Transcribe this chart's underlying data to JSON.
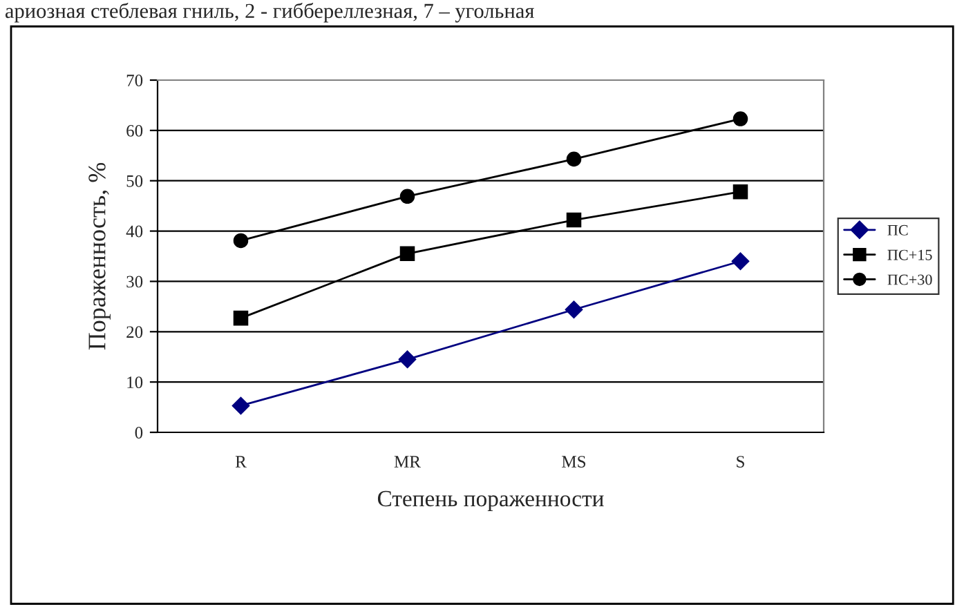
{
  "chart_data": {
    "type": "line",
    "annotations": [
      "ариозная стеблевая гниль, 2 - гиббереллезная, 7 – угольная"
    ],
    "xlabel": "Степень пораженности",
    "ylabel": "Пораженность, %",
    "categories": [
      "R",
      "MR",
      "MS",
      "S"
    ],
    "series": [
      {
        "name": "ПС",
        "color": "#000080",
        "values": [
          5.3,
          14.5,
          24.4,
          34.0
        ],
        "marker": "diamond"
      },
      {
        "name": "ПС+15",
        "color": "#000000",
        "values": [
          22.7,
          35.5,
          42.2,
          47.8
        ],
        "marker": "square"
      },
      {
        "name": "ПС+30",
        "color": "#000000",
        "values": [
          38.1,
          46.9,
          54.3,
          62.3
        ],
        "marker": "circle"
      }
    ],
    "ylim": [
      0,
      70
    ],
    "yticks": [
      0,
      10,
      20,
      30,
      40,
      50,
      60,
      70
    ],
    "grid": "y",
    "legend": "right",
    "line_style": "solid"
  }
}
